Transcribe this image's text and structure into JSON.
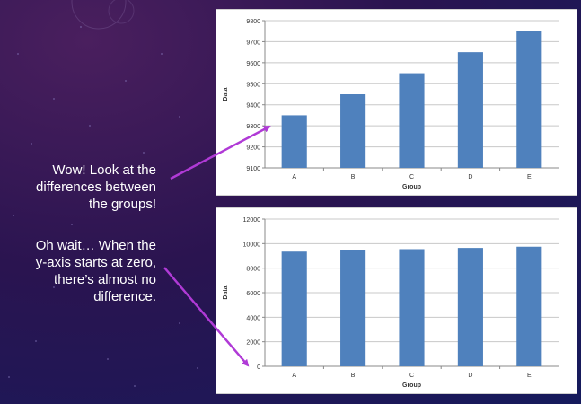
{
  "captions": {
    "first": [
      "Wow!  Look at the",
      "differences between",
      "the groups!"
    ],
    "second": [
      "Oh wait… When the",
      "y-axis starts at zero,",
      "there’s almost no",
      "difference."
    ]
  },
  "colors": {
    "bar": "#4f81bd",
    "grid": "#c8c8c8",
    "arrow": "#b03ad6"
  },
  "chart_data": [
    {
      "type": "bar",
      "categories": [
        "A",
        "B",
        "C",
        "D",
        "E"
      ],
      "values": [
        9350,
        9450,
        9550,
        9650,
        9750
      ],
      "xlabel": "Group",
      "ylabel": "Data",
      "ylim": [
        9100,
        9800
      ],
      "yticks": [
        9100,
        9200,
        9300,
        9400,
        9500,
        9600,
        9700,
        9800
      ],
      "grid": true
    },
    {
      "type": "bar",
      "categories": [
        "A",
        "B",
        "C",
        "D",
        "E"
      ],
      "values": [
        9350,
        9450,
        9550,
        9650,
        9750
      ],
      "xlabel": "Group",
      "ylabel": "Data",
      "ylim": [
        0,
        12000
      ],
      "yticks": [
        0,
        2000,
        4000,
        6000,
        8000,
        10000,
        12000
      ],
      "grid": true
    }
  ]
}
